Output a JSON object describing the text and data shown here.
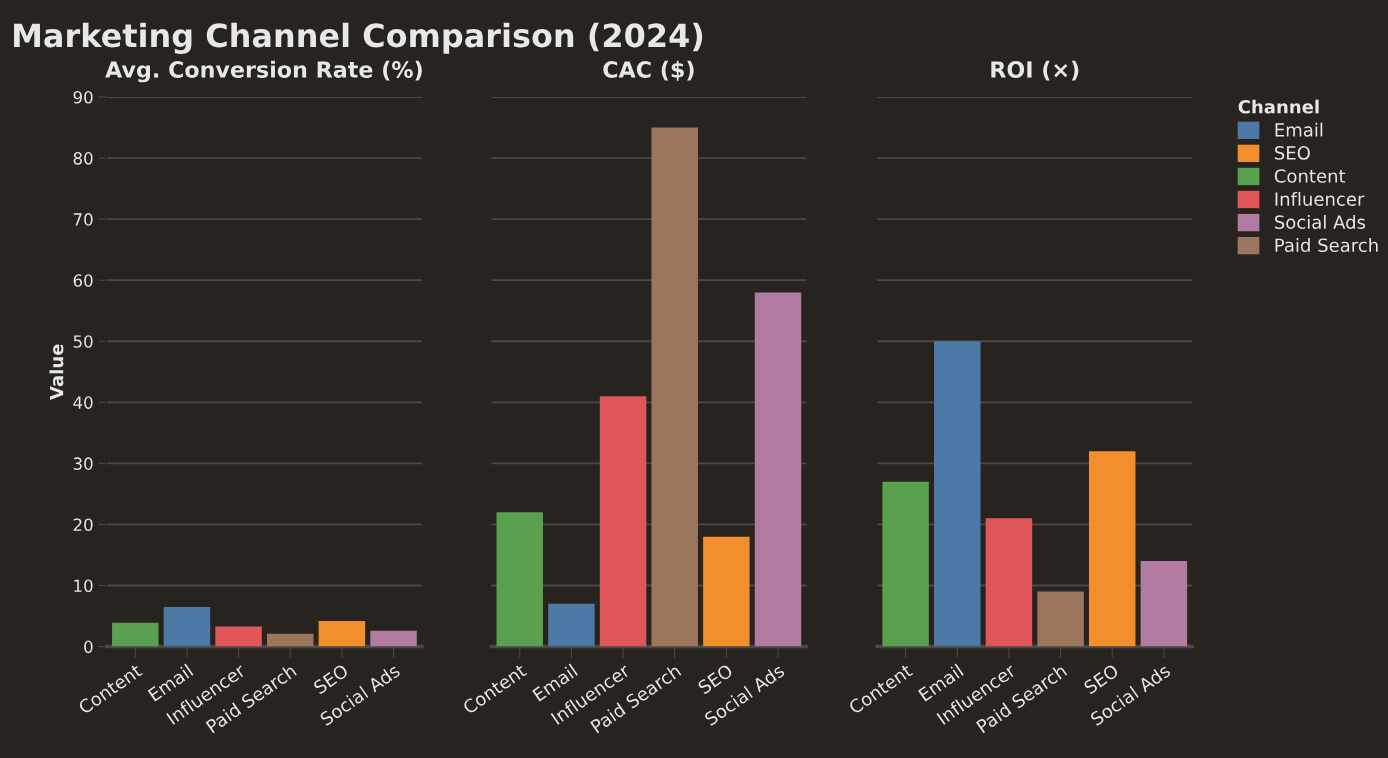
{
  "chart_data": [
    {
      "type": "bar",
      "title": "Marketing Channel Comparison (2024)",
      "subtitle": "Avg. Conversion Rate (%)",
      "ylabel": "Value",
      "stacked": true,
      "grid": "y",
      "legend": "right",
      "legend_title": "Channel",
      "categories": [
        "Content",
        "Email",
        "Influencer",
        "Paid Search",
        "SEO",
        "Social Ads"
      ],
      "ylim": [
        0,
        90
      ],
      "yticks": [
        0,
        10,
        20,
        30,
        40,
        50,
        60,
        70,
        80,
        90
      ],
      "series": [
        {
          "name": "Email",
          "color": "#4e79a7",
          "values": [
            null,
            6.5,
            null,
            null,
            null,
            null
          ]
        },
        {
          "name": "SEO",
          "color": "#f28e2b",
          "values": [
            null,
            null,
            null,
            null,
            4.2,
            null
          ]
        },
        {
          "name": "Content",
          "color": "#59a14f",
          "values": [
            3.9,
            null,
            null,
            null,
            null,
            null
          ]
        },
        {
          "name": "Influencer",
          "color": "#e15759",
          "values": [
            null,
            null,
            3.3,
            null,
            null,
            null
          ]
        },
        {
          "name": "Social Ads",
          "color": "#b07aa1",
          "values": [
            null,
            null,
            null,
            null,
            null,
            2.6
          ]
        },
        {
          "name": "Paid Search",
          "color": "#9c755f",
          "values": [
            null,
            null,
            null,
            2.1,
            null,
            null
          ]
        }
      ]
    },
    {
      "type": "bar",
      "subtitle": "CAC ($)",
      "stacked": true,
      "grid": "y",
      "tick_labels": "x",
      "categories": [
        "Content",
        "Email",
        "Influencer",
        "Paid Search",
        "SEO",
        "Social Ads"
      ],
      "ylim": [
        0,
        90
      ],
      "yticks": [
        0,
        10,
        20,
        30,
        40,
        50,
        60,
        70,
        80,
        90
      ],
      "series": [
        {
          "color": "#4e79a7",
          "values": [
            null,
            7,
            null,
            null,
            null,
            null
          ]
        },
        {
          "color": "#f28e2b",
          "values": [
            null,
            null,
            null,
            null,
            18,
            null
          ]
        },
        {
          "color": "#59a14f",
          "values": [
            22,
            null,
            null,
            null,
            null,
            null
          ]
        },
        {
          "color": "#e15759",
          "values": [
            null,
            null,
            41,
            null,
            null,
            null
          ]
        },
        {
          "color": "#b07aa1",
          "values": [
            null,
            null,
            null,
            null,
            null,
            58
          ]
        },
        {
          "color": "#9c755f",
          "values": [
            null,
            null,
            null,
            85,
            null,
            null
          ]
        }
      ]
    },
    {
      "type": "bar",
      "subtitle": "ROI (×)",
      "stacked": true,
      "grid": "y",
      "tick_labels": "x",
      "categories": [
        "Content",
        "Email",
        "Influencer",
        "Paid Search",
        "SEO",
        "Social Ads"
      ],
      "ylim": [
        0,
        90
      ],
      "yticks": [
        0,
        10,
        20,
        30,
        40,
        50,
        60,
        70,
        80,
        90
      ],
      "series": [
        {
          "color": "#4e79a7",
          "values": [
            null,
            50,
            null,
            null,
            null,
            null
          ]
        },
        {
          "color": "#f28e2b",
          "values": [
            null,
            null,
            null,
            null,
            32,
            null
          ]
        },
        {
          "color": "#59a14f",
          "values": [
            27,
            null,
            null,
            null,
            null,
            null
          ]
        },
        {
          "color": "#e15759",
          "values": [
            null,
            null,
            21,
            null,
            null,
            null
          ]
        },
        {
          "color": "#b07aa1",
          "values": [
            null,
            null,
            null,
            null,
            null,
            14
          ]
        },
        {
          "color": "#9c755f",
          "values": [
            null,
            null,
            null,
            9,
            null,
            null
          ]
        }
      ]
    }
  ]
}
